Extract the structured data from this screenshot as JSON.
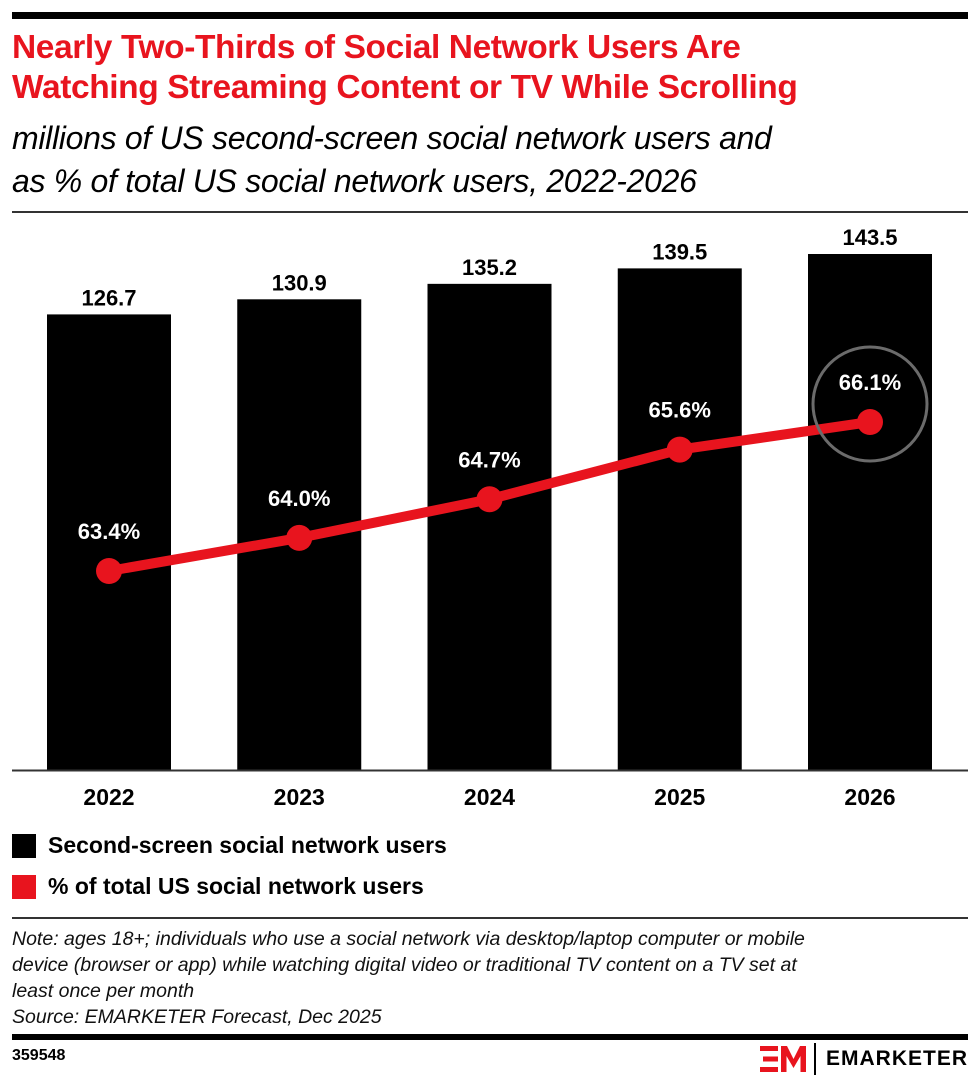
{
  "header": {
    "title_line1": "Nearly Two-Thirds of Social Network Users Are",
    "title_line2": "Watching Streaming Content or TV While Scrolling",
    "subtitle_line1": "millions of US second-screen social network users and",
    "subtitle_line2": "as % of total US social network users, 2022-2026"
  },
  "colors": {
    "bar": "#000000",
    "line": "#e8141e",
    "title": "#e8141e",
    "highlight_circle": "#6b6b6b"
  },
  "chart_data": {
    "type": "bar",
    "title": "Nearly Two-Thirds of Social Network Users Are Watching Streaming Content or TV While Scrolling",
    "subtitle": "millions of US second-screen social network users and as % of total US social network users, 2022-2026",
    "categories": [
      "2022",
      "2023",
      "2024",
      "2025",
      "2026"
    ],
    "series": [
      {
        "name": "Second-screen social network users",
        "type": "bar",
        "values": [
          126.7,
          130.9,
          135.2,
          139.5,
          143.5
        ],
        "labels": [
          "126.7",
          "130.9",
          "135.2",
          "139.5",
          "143.5"
        ]
      },
      {
        "name": "% of total US social network users",
        "type": "line",
        "values": [
          63.4,
          64.0,
          64.7,
          65.6,
          66.1
        ],
        "labels": [
          "63.4%",
          "64.0%",
          "64.7%",
          "65.6%",
          "66.1%"
        ]
      }
    ],
    "highlighted_category": "2026",
    "ylim": [
      0,
      143.5
    ],
    "grid": false,
    "legend": "bottom-left"
  },
  "legend": [
    {
      "label": "Second-screen social network users"
    },
    {
      "label": "% of total US social network users"
    }
  ],
  "footer": {
    "note_line1": "Note: ages 18+; individuals who use a social network via desktop/laptop computer or mobile",
    "note_line2": "device (browser or app) while watching digital video or traditional TV content on a TV set at",
    "note_line3": "least once per month",
    "source": "Source: EMARKETER Forecast, Dec 2025",
    "chart_id": "359548",
    "brand": "EMARKETER"
  }
}
